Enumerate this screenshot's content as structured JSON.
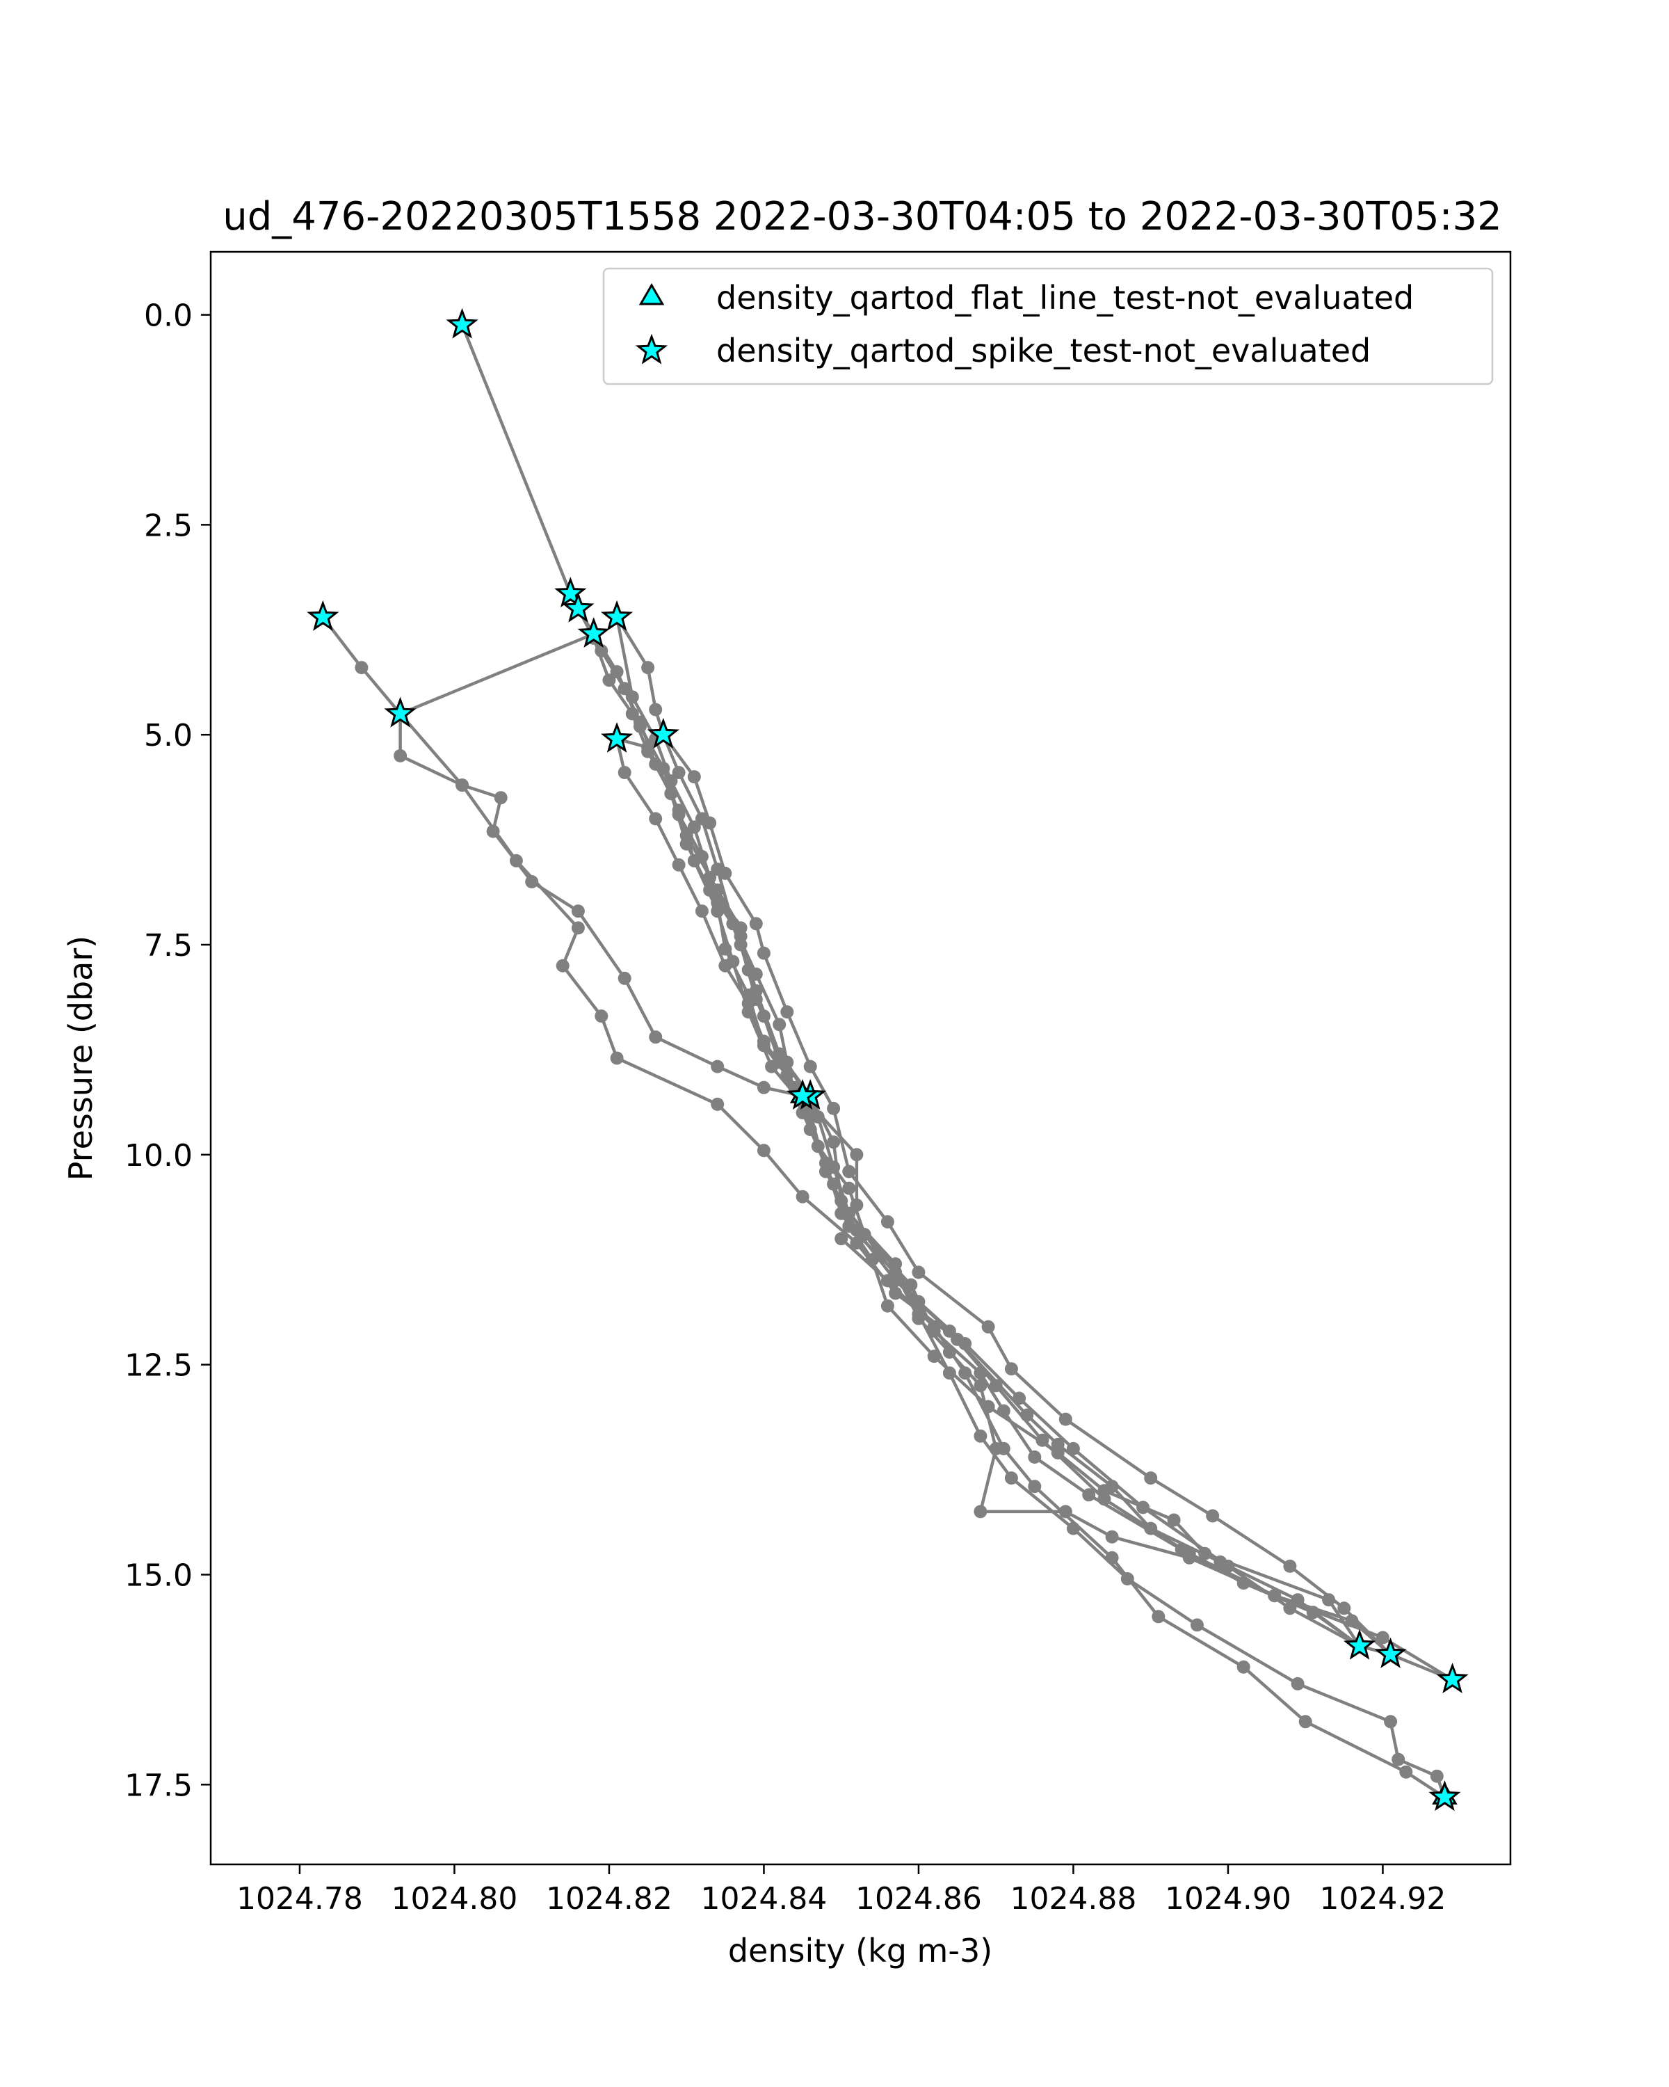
{
  "chart_data": {
    "type": "scatter",
    "title": "ud_476-20220305T1558 2022-03-30T04:05 to 2022-03-30T05:32",
    "xlabel": "density (kg m-3)",
    "ylabel": "Pressure (dbar)",
    "xlim": [
      1024.7685,
      1024.9365
    ],
    "ylim": [
      18.45,
      -0.75
    ],
    "y_inverted": true,
    "x_ticks": [
      1024.78,
      1024.8,
      1024.82,
      1024.84,
      1024.86,
      1024.88,
      1024.9,
      1024.92
    ],
    "x_tick_labels": [
      "1024.78",
      "1024.80",
      "1024.82",
      "1024.84",
      "1024.86",
      "1024.88",
      "1024.90",
      "1024.92"
    ],
    "y_ticks": [
      0.0,
      2.5,
      5.0,
      7.5,
      10.0,
      12.5,
      15.0,
      17.5
    ],
    "y_tick_labels": [
      "0.0",
      "2.5",
      "5.0",
      "7.5",
      "10.0",
      "12.5",
      "15.0",
      "17.5"
    ],
    "grid": false,
    "legend": {
      "placement": "top-right",
      "entries": [
        {
          "label": "density_qartod_flat_line_test-not_evaluated",
          "marker": "triangle"
        },
        {
          "label": "density_qartod_spike_test-not_evaluated",
          "marker": "star"
        }
      ]
    },
    "colors": {
      "trace": "#808080",
      "flag_fill": "#00ffff",
      "flag_edge": "#000000"
    },
    "series": [
      {
        "values": [
          [
            1024.801,
            0.12
          ],
          [
            1024.815,
            3.32
          ],
          [
            1024.818,
            3.85
          ],
          [
            1024.82,
            4.35
          ],
          [
            1024.823,
            4.75
          ],
          [
            1024.825,
            5.2
          ],
          [
            1024.828,
            5.7
          ],
          [
            1024.83,
            6.2
          ],
          [
            1024.834,
            6.85
          ],
          [
            1024.837,
            7.5
          ],
          [
            1024.839,
            8.15
          ],
          [
            1024.842,
            8.8
          ],
          [
            1024.846,
            9.3
          ],
          [
            1024.849,
            9.85
          ],
          [
            1024.85,
            10.55
          ],
          [
            1024.855,
            11.2
          ],
          [
            1024.86,
            11.75
          ],
          [
            1024.866,
            12.25
          ],
          [
            1024.873,
            12.9
          ],
          [
            1024.88,
            13.5
          ],
          [
            1024.889,
            14.2
          ],
          [
            1024.9,
            14.9
          ],
          [
            1024.908,
            15.4
          ],
          [
            1024.917,
            15.85
          ],
          [
            1024.921,
            15.95
          ],
          [
            1024.929,
            16.25
          ]
        ]
      },
      {
        "values": [
          [
            1024.929,
            16.25
          ],
          [
            1024.92,
            15.75
          ],
          [
            1024.906,
            15.25
          ],
          [
            1024.895,
            14.75
          ],
          [
            1024.884,
            14.1
          ],
          [
            1024.876,
            13.4
          ],
          [
            1024.87,
            12.75
          ],
          [
            1024.864,
            12.1
          ],
          [
            1024.857,
            11.5
          ],
          [
            1024.852,
            10.9
          ],
          [
            1024.848,
            10.2
          ],
          [
            1024.846,
            9.5
          ],
          [
            1024.841,
            8.95
          ],
          [
            1024.838,
            8.3
          ],
          [
            1024.836,
            7.7
          ],
          [
            1024.834,
            7.1
          ],
          [
            1024.831,
            6.5
          ],
          [
            1024.829,
            5.9
          ],
          [
            1024.826,
            5.35
          ],
          [
            1024.824,
            4.85
          ],
          [
            1024.821,
            4.25
          ],
          [
            1024.818,
            3.8
          ],
          [
            1024.816,
            3.5
          ]
        ]
      },
      {
        "values": [
          [
            1024.816,
            3.5
          ],
          [
            1024.819,
            4.0
          ],
          [
            1024.822,
            4.45
          ],
          [
            1024.824,
            4.9
          ],
          [
            1024.827,
            5.4
          ],
          [
            1024.829,
            5.95
          ],
          [
            1024.832,
            6.45
          ],
          [
            1024.834,
            7.0
          ],
          [
            1024.835,
            7.55
          ],
          [
            1024.838,
            8.1
          ],
          [
            1024.84,
            8.7
          ],
          [
            1024.845,
            9.3
          ],
          [
            1024.847,
            9.9
          ],
          [
            1024.851,
            10.4
          ],
          [
            1024.853,
            10.95
          ],
          [
            1024.859,
            11.55
          ],
          [
            1024.862,
            12.1
          ],
          [
            1024.868,
            12.6
          ],
          [
            1024.871,
            13.05
          ],
          [
            1024.875,
            13.6
          ],
          [
            1024.882,
            14.05
          ],
          [
            1024.894,
            14.7
          ],
          [
            1024.902,
            15.1
          ],
          [
            1024.911,
            15.45
          ],
          [
            1024.917,
            15.85
          ]
        ]
      },
      {
        "values": [
          [
            1024.917,
            15.85
          ],
          [
            1024.913,
            15.3
          ],
          [
            1024.897,
            14.75
          ],
          [
            1024.893,
            14.35
          ],
          [
            1024.884,
            14.0
          ],
          [
            1024.878,
            13.55
          ],
          [
            1024.869,
            13.0
          ],
          [
            1024.862,
            12.4
          ],
          [
            1024.856,
            11.8
          ],
          [
            1024.854,
            11.25
          ],
          [
            1024.85,
            10.7
          ],
          [
            1024.848,
            10.1
          ],
          [
            1024.845,
            9.5
          ],
          [
            1024.842,
            8.9
          ],
          [
            1024.84,
            8.35
          ],
          [
            1024.838,
            7.8
          ],
          [
            1024.837,
            7.3
          ],
          [
            1024.833,
            6.7
          ],
          [
            1024.831,
            6.1
          ],
          [
            1024.828,
            5.55
          ],
          [
            1024.826,
            5.05
          ],
          [
            1024.823,
            4.55
          ],
          [
            1024.821,
            3.6
          ]
        ]
      },
      {
        "values": [
          [
            1024.821,
            3.6
          ],
          [
            1024.825,
            4.2
          ],
          [
            1024.826,
            4.7
          ],
          [
            1024.827,
            5.0
          ],
          [
            1024.831,
            5.5
          ],
          [
            1024.833,
            6.05
          ],
          [
            1024.835,
            6.65
          ],
          [
            1024.839,
            7.25
          ],
          [
            1024.84,
            7.6
          ],
          [
            1024.843,
            8.3
          ],
          [
            1024.846,
            8.95
          ],
          [
            1024.849,
            9.45
          ],
          [
            1024.851,
            10.2
          ],
          [
            1024.856,
            10.8
          ],
          [
            1024.86,
            11.4
          ],
          [
            1024.869,
            12.05
          ],
          [
            1024.872,
            12.55
          ],
          [
            1024.879,
            13.15
          ],
          [
            1024.89,
            13.85
          ],
          [
            1024.898,
            14.3
          ],
          [
            1024.908,
            14.9
          ],
          [
            1024.915,
            15.4
          ],
          [
            1024.921,
            15.95
          ]
        ]
      },
      {
        "values": [
          [
            1024.921,
            15.95
          ],
          [
            1024.916,
            15.55
          ],
          [
            1024.906,
            15.25
          ],
          [
            1024.895,
            14.8
          ],
          [
            1024.885,
            14.55
          ],
          [
            1024.879,
            14.25
          ],
          [
            1024.868,
            14.25
          ],
          [
            1024.87,
            13.5
          ],
          [
            1024.868,
            12.75
          ],
          [
            1024.864,
            12.35
          ],
          [
            1024.86,
            11.95
          ],
          [
            1024.857,
            11.4
          ],
          [
            1024.851,
            10.85
          ],
          [
            1024.849,
            10.35
          ],
          [
            1024.846,
            9.7
          ],
          [
            1024.844,
            9.2
          ],
          [
            1024.842,
            8.8
          ],
          [
            1024.839,
            8.05
          ],
          [
            1024.837,
            7.4
          ],
          [
            1024.833,
            6.85
          ],
          [
            1024.83,
            6.3
          ],
          [
            1024.828,
            5.7
          ],
          [
            1024.825,
            5.15
          ],
          [
            1024.821,
            5.05
          ]
        ]
      },
      {
        "values": [
          [
            1024.821,
            5.05
          ],
          [
            1024.822,
            5.45
          ],
          [
            1024.826,
            6.0
          ],
          [
            1024.829,
            6.55
          ],
          [
            1024.832,
            7.1
          ],
          [
            1024.835,
            7.75
          ],
          [
            1024.838,
            8.2
          ],
          [
            1024.84,
            8.65
          ],
          [
            1024.843,
            9.05
          ],
          [
            1024.845,
            9.3
          ]
        ]
      },
      {
        "values": [
          [
            1024.845,
            9.3
          ],
          [
            1024.84,
            9.2
          ],
          [
            1024.834,
            8.95
          ],
          [
            1024.826,
            8.6
          ],
          [
            1024.822,
            7.9
          ],
          [
            1024.816,
            7.1
          ],
          [
            1024.81,
            6.75
          ],
          [
            1024.805,
            6.15
          ],
          [
            1024.806,
            5.75
          ],
          [
            1024.801,
            5.6
          ],
          [
            1024.793,
            5.25
          ],
          [
            1024.793,
            4.75
          ],
          [
            1024.788,
            4.2
          ],
          [
            1024.783,
            3.6
          ]
        ]
      },
      {
        "values": [
          [
            1024.793,
            4.75
          ],
          [
            1024.818,
            3.8
          ]
        ]
      },
      {
        "values": [
          [
            1024.793,
            4.75
          ],
          [
            1024.801,
            5.6
          ],
          [
            1024.808,
            6.5
          ],
          [
            1024.816,
            7.3
          ],
          [
            1024.814,
            7.75
          ],
          [
            1024.819,
            8.35
          ],
          [
            1024.821,
            8.85
          ],
          [
            1024.834,
            9.4
          ],
          [
            1024.84,
            9.95
          ],
          [
            1024.845,
            10.5
          ],
          [
            1024.852,
            11.05
          ],
          [
            1024.857,
            11.65
          ],
          [
            1024.865,
            12.2
          ],
          [
            1024.874,
            13.1
          ],
          [
            1024.878,
            13.45
          ],
          [
            1024.885,
            13.95
          ],
          [
            1024.89,
            14.45
          ],
          [
            1024.899,
            14.85
          ],
          [
            1024.909,
            15.3
          ],
          [
            1024.917,
            15.85
          ]
        ]
      },
      {
        "values": [
          [
            1024.845,
            9.3
          ],
          [
            1024.852,
            10.0
          ],
          [
            1024.852,
            10.6
          ],
          [
            1024.85,
            11.0
          ],
          [
            1024.856,
            11.5
          ],
          [
            1024.862,
            12.05
          ],
          [
            1024.866,
            12.6
          ],
          [
            1024.871,
            13.5
          ],
          [
            1024.875,
            13.95
          ],
          [
            1024.885,
            14.8
          ],
          [
            1024.891,
            15.5
          ],
          [
            1024.902,
            16.1
          ],
          [
            1024.91,
            16.75
          ],
          [
            1024.923,
            17.35
          ],
          [
            1024.928,
            17.65
          ]
        ]
      },
      {
        "values": [
          [
            1024.928,
            17.65
          ],
          [
            1024.927,
            17.4
          ],
          [
            1024.922,
            17.2
          ],
          [
            1024.921,
            16.75
          ],
          [
            1024.909,
            16.3
          ],
          [
            1024.896,
            15.6
          ],
          [
            1024.887,
            15.05
          ],
          [
            1024.88,
            14.45
          ],
          [
            1024.872,
            13.85
          ],
          [
            1024.868,
            13.35
          ],
          [
            1024.864,
            12.6
          ],
          [
            1024.86,
            11.9
          ],
          [
            1024.857,
            11.3
          ],
          [
            1024.851,
            10.7
          ],
          [
            1024.849,
            10.15
          ],
          [
            1024.847,
            9.55
          ],
          [
            1024.843,
            8.9
          ],
          [
            1024.842,
            8.45
          ],
          [
            1024.839,
            7.85
          ],
          [
            1024.836,
            7.25
          ],
          [
            1024.834,
            6.6
          ],
          [
            1024.832,
            6.0
          ],
          [
            1024.829,
            5.45
          ],
          [
            1024.827,
            5.0
          ]
        ]
      }
    ],
    "flagged_points": [
      {
        "x": 1024.801,
        "y": 0.12,
        "marker": "star"
      },
      {
        "x": 1024.815,
        "y": 3.32,
        "marker": "star"
      },
      {
        "x": 1024.816,
        "y": 3.5,
        "marker": "star"
      },
      {
        "x": 1024.818,
        "y": 3.8,
        "marker": "star"
      },
      {
        "x": 1024.821,
        "y": 3.6,
        "marker": "star"
      },
      {
        "x": 1024.783,
        "y": 3.6,
        "marker": "star"
      },
      {
        "x": 1024.793,
        "y": 4.75,
        "marker": "star"
      },
      {
        "x": 1024.821,
        "y": 5.05,
        "marker": "star"
      },
      {
        "x": 1024.827,
        "y": 5.0,
        "marker": "star"
      },
      {
        "x": 1024.845,
        "y": 9.3,
        "marker": "triangle"
      },
      {
        "x": 1024.846,
        "y": 9.3,
        "marker": "star"
      },
      {
        "x": 1024.845,
        "y": 9.3,
        "marker": "star"
      },
      {
        "x": 1024.917,
        "y": 15.85,
        "marker": "star"
      },
      {
        "x": 1024.921,
        "y": 15.95,
        "marker": "star"
      },
      {
        "x": 1024.929,
        "y": 16.25,
        "marker": "star"
      },
      {
        "x": 1024.928,
        "y": 17.65,
        "marker": "triangle"
      },
      {
        "x": 1024.928,
        "y": 17.65,
        "marker": "star"
      }
    ]
  }
}
